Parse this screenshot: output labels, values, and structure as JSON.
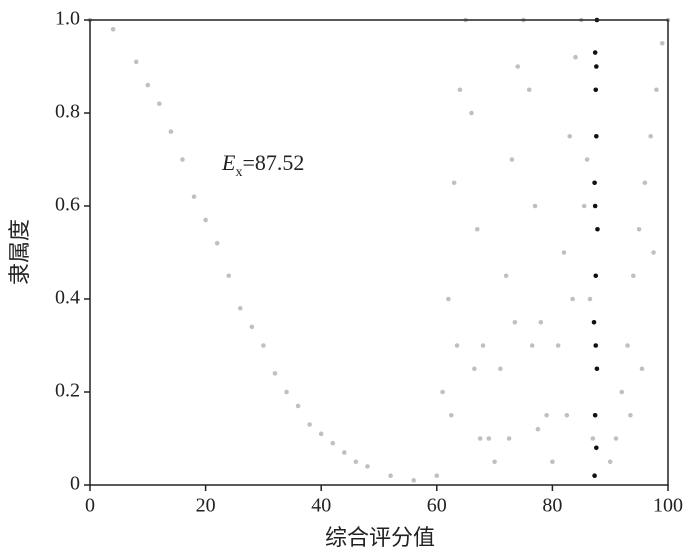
{
  "chart_data": {
    "type": "scatter",
    "x_label": "综合评分值",
    "y_label": "隶属度",
    "annotation": "E",
    "annotation_subscript": "x",
    "annotation_value": "=87.52",
    "xlim": [
      0,
      100
    ],
    "xticks": [
      0,
      20,
      40,
      60,
      80,
      100
    ],
    "ylim": [
      0,
      1
    ],
    "yticks": [
      0,
      0.2,
      0.4,
      0.6,
      0.8,
      {
        "value": 1,
        "label": "1.0"
      }
    ],
    "grid": false,
    "series": [
      {
        "color": "#c4bfbc",
        "x": [
          0,
          4,
          8,
          12,
          16,
          20,
          24,
          28,
          32,
          36,
          40,
          44,
          48,
          52,
          56,
          10,
          14,
          18,
          22,
          26,
          30,
          34,
          38,
          42,
          46,
          60,
          61,
          62,
          63,
          64,
          65,
          66,
          67,
          68,
          69,
          62.5,
          63.5,
          66.5,
          67.5,
          70,
          71,
          72,
          73,
          74,
          75,
          76,
          77,
          78,
          79,
          72.5,
          73.5,
          76.5,
          77.5,
          80,
          81,
          82,
          83,
          84,
          85,
          86,
          86.5,
          87,
          82.5,
          83.5,
          85.5,
          90,
          91,
          92,
          93,
          94,
          95,
          96,
          97,
          98,
          99,
          100,
          93.5,
          95.5,
          97.5
        ],
        "values": [
          1.0,
          0.98,
          0.91,
          0.82,
          0.7,
          0.57,
          0.45,
          0.34,
          0.24,
          0.17,
          0.11,
          0.07,
          0.04,
          0.02,
          0.01,
          0.86,
          0.76,
          0.62,
          0.52,
          0.38,
          0.3,
          0.2,
          0.13,
          0.09,
          0.05,
          0.02,
          0.2,
          0.4,
          0.65,
          0.85,
          1.0,
          0.8,
          0.55,
          0.3,
          0.1,
          0.15,
          0.3,
          0.25,
          0.1,
          0.05,
          0.25,
          0.45,
          0.7,
          0.9,
          1.0,
          0.85,
          0.6,
          0.35,
          0.15,
          0.1,
          0.35,
          0.3,
          0.12,
          0.05,
          0.3,
          0.5,
          0.75,
          0.92,
          1.0,
          0.7,
          0.4,
          0.1,
          0.15,
          0.4,
          0.6,
          0.05,
          0.1,
          0.2,
          0.3,
          0.45,
          0.55,
          0.65,
          0.75,
          0.85,
          0.95,
          1.0,
          0.15,
          0.25,
          0.5
        ]
      },
      {
        "color": "#111111",
        "x": [
          87.3,
          87.6,
          87.4,
          87.7,
          87.2,
          87.5,
          87.8,
          87.3,
          87.6,
          87.5,
          87.4,
          87.7,
          87.5,
          87.4,
          87.6
        ],
        "values": [
          0.02,
          0.08,
          0.15,
          0.25,
          0.35,
          0.45,
          0.55,
          0.65,
          0.75,
          0.85,
          0.93,
          1.0,
          0.3,
          0.6,
          0.9
        ]
      }
    ]
  }
}
